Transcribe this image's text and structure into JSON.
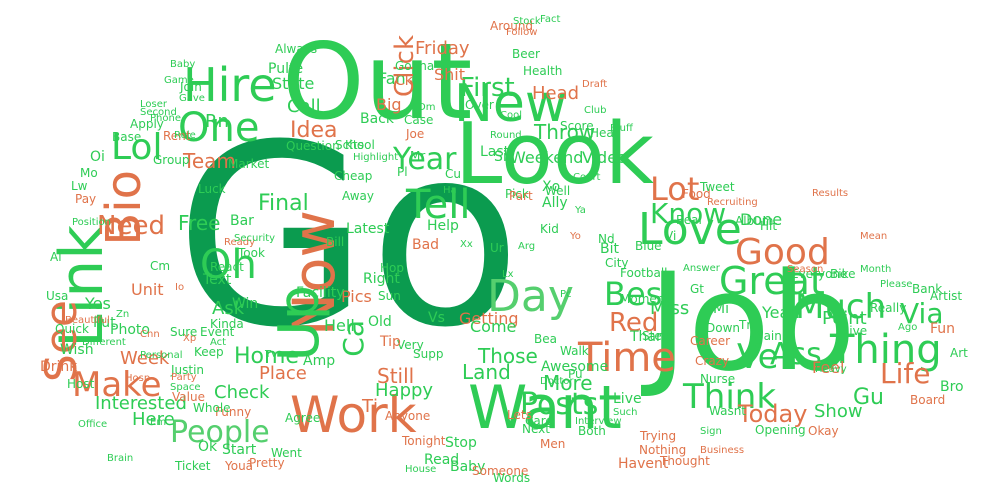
{
  "colors": {
    "dark_green": "#0b9b4f",
    "green": "#2ecc55",
    "light_green": "#55cf6e",
    "orange": "#e0734a",
    "background": "#ffffff"
  },
  "words": [
    {
      "text": "Go",
      "color": "dark_green"
    },
    {
      "text": "Job",
      "color": "green"
    },
    {
      "text": "Out",
      "color": "green"
    },
    {
      "text": "Look",
      "color": "green"
    },
    {
      "text": "Link",
      "color": "green"
    },
    {
      "text": "Want",
      "color": "green"
    },
    {
      "text": "Now",
      "color": "orange"
    },
    {
      "text": "Work",
      "color": "orange"
    },
    {
      "text": "People",
      "color": "light_green"
    },
    {
      "text": "Time",
      "color": "orange"
    },
    {
      "text": "Make",
      "color": "orange"
    },
    {
      "text": "See",
      "color": "orange"
    },
    {
      "text": "Hire",
      "color": "green"
    },
    {
      "text": "New",
      "color": "green"
    },
    {
      "text": "Bio",
      "color": "orange"
    },
    {
      "text": "One",
      "color": "green"
    },
    {
      "text": "Love",
      "color": "green"
    },
    {
      "text": "Tell",
      "color": "green"
    },
    {
      "text": "Think",
      "color": "green"
    },
    {
      "text": "Great",
      "color": "green"
    },
    {
      "text": "Thing",
      "color": "green"
    },
    {
      "text": "Good",
      "color": "orange"
    },
    {
      "text": "Much",
      "color": "green"
    },
    {
      "text": "Best",
      "color": "green"
    },
    {
      "text": "Day",
      "color": "light_green"
    },
    {
      "text": "Up",
      "color": "green"
    },
    {
      "text": "Oh",
      "color": "green"
    },
    {
      "text": "Year",
      "color": "green"
    },
    {
      "text": "Know",
      "color": "green"
    },
    {
      "text": "Lot",
      "color": "orange"
    },
    {
      "text": "Lol",
      "color": "green"
    },
    {
      "text": "Posts",
      "color": "green"
    },
    {
      "text": "Red",
      "color": "orange"
    },
    {
      "text": "Ve",
      "color": "green"
    },
    {
      "text": "Ass",
      "color": "green"
    },
    {
      "text": "Life",
      "color": "orange"
    },
    {
      "text": "Via",
      "color": "green"
    },
    {
      "text": "Need",
      "color": "orange"
    },
    {
      "text": "Click",
      "color": "orange"
    },
    {
      "text": "Today",
      "color": "orange"
    },
    {
      "text": "Ca",
      "color": "green"
    },
    {
      "text": "Interested",
      "color": "green"
    },
    {
      "text": "Rn",
      "color": "green"
    },
    {
      "text": "Still",
      "color": "orange"
    },
    {
      "text": "Happy",
      "color": "green"
    },
    {
      "text": "Land",
      "color": "green"
    },
    {
      "text": "Show",
      "color": "green"
    },
    {
      "text": "Here",
      "color": "green"
    },
    {
      "text": "Week",
      "color": "orange"
    },
    {
      "text": "Final",
      "color": "green"
    },
    {
      "text": "Home",
      "color": "green"
    },
    {
      "text": "Ask",
      "color": "green"
    },
    {
      "text": "Gu",
      "color": "green"
    },
    {
      "text": "More",
      "color": "green"
    },
    {
      "text": "First",
      "color": "green"
    },
    {
      "text": "Latest",
      "color": "green"
    },
    {
      "text": "Weekend",
      "color": "green"
    },
    {
      "text": "Those",
      "color": "green"
    },
    {
      "text": "Head",
      "color": "orange"
    },
    {
      "text": "Throw",
      "color": "green"
    },
    {
      "text": "Team",
      "color": "orange"
    },
    {
      "text": "Free",
      "color": "green"
    },
    {
      "text": "Unit",
      "color": "orange"
    },
    {
      "text": "Photo",
      "color": "green"
    },
    {
      "text": "Point",
      "color": "green"
    },
    {
      "text": "Feel",
      "color": "orange"
    },
    {
      "text": "Place",
      "color": "orange"
    },
    {
      "text": "Call",
      "color": "green"
    },
    {
      "text": "Idea",
      "color": "orange"
    },
    {
      "text": "State",
      "color": "green"
    },
    {
      "text": "Pulte",
      "color": "green"
    },
    {
      "text": "Always",
      "color": "green"
    },
    {
      "text": "Friday",
      "color": "orange"
    },
    {
      "text": "Shit",
      "color": "orange"
    },
    {
      "text": "Big",
      "color": "orange"
    },
    {
      "text": "Getting",
      "color": "orange"
    },
    {
      "text": "Video",
      "color": "green"
    },
    {
      "text": "Thank",
      "color": "green"
    },
    {
      "text": "Miss",
      "color": "green"
    },
    {
      "text": "Done",
      "color": "green"
    },
    {
      "text": "Album",
      "color": "green"
    },
    {
      "text": "Yeah",
      "color": "green"
    },
    {
      "text": "Live",
      "color": "green"
    },
    {
      "text": "Check",
      "color": "green"
    },
    {
      "text": "Hell",
      "color": "green"
    },
    {
      "text": "Amp",
      "color": "green"
    },
    {
      "text": "Pics",
      "color": "orange"
    },
    {
      "text": "Facility",
      "color": "green"
    },
    {
      "text": "Win",
      "color": "green"
    },
    {
      "text": "Put",
      "color": "green"
    },
    {
      "text": "Yes",
      "color": "green"
    },
    {
      "text": "Wish",
      "color": "green"
    },
    {
      "text": "Drink",
      "color": "orange"
    },
    {
      "text": "Ok",
      "color": "green"
    },
    {
      "text": "Start",
      "color": "green"
    },
    {
      "text": "Went",
      "color": "green"
    },
    {
      "text": "Read",
      "color": "green"
    },
    {
      "text": "Baby",
      "color": "green"
    },
    {
      "text": "Someone",
      "color": "orange"
    },
    {
      "text": "Nothing",
      "color": "orange"
    },
    {
      "text": "Opening",
      "color": "green"
    },
    {
      "text": "Men",
      "color": "orange"
    },
    {
      "text": "Stop",
      "color": "green"
    },
    {
      "text": "Come",
      "color": "green"
    },
    {
      "text": "Bad",
      "color": "orange"
    },
    {
      "text": "Help",
      "color": "green"
    },
    {
      "text": "Text",
      "color": "green"
    },
    {
      "text": "Bit",
      "color": "green"
    },
    {
      "text": "City",
      "color": "green"
    },
    {
      "text": "Bank",
      "color": "green"
    },
    {
      "text": "Fun",
      "color": "orange"
    },
    {
      "text": "Bro",
      "color": "green"
    },
    {
      "text": "Give",
      "color": "green"
    },
    {
      "text": "Down",
      "color": "green"
    },
    {
      "text": "Career",
      "color": "orange"
    },
    {
      "text": "Crazy",
      "color": "orange"
    },
    {
      "text": "Hit",
      "color": "green"
    },
    {
      "text": "Food",
      "color": "orange"
    },
    {
      "text": "Real",
      "color": "green"
    },
    {
      "text": "Fan",
      "color": "green"
    },
    {
      "text": "Back",
      "color": "green"
    },
    {
      "text": "Joe",
      "color": "orange"
    },
    {
      "text": "Xo",
      "color": "green"
    },
    {
      "text": "Ally",
      "color": "green"
    },
    {
      "text": "Score",
      "color": "green"
    },
    {
      "text": "School",
      "color": "green"
    },
    {
      "text": "Question",
      "color": "green"
    },
    {
      "text": "Kts",
      "color": "green"
    },
    {
      "text": "Group",
      "color": "green"
    },
    {
      "text": "Luck",
      "color": "green"
    },
    {
      "text": "Position",
      "color": "green"
    },
    {
      "text": "Lw",
      "color": "green"
    },
    {
      "text": "Mo",
      "color": "green"
    },
    {
      "text": "Oi",
      "color": "green"
    },
    {
      "text": "Pay",
      "color": "orange"
    },
    {
      "text": "Phone",
      "color": "green"
    },
    {
      "text": "Apply",
      "color": "green"
    },
    {
      "text": "Base",
      "color": "green"
    },
    {
      "text": "Loser",
      "color": "green"
    },
    {
      "text": "Game",
      "color": "green"
    },
    {
      "text": "Baby",
      "color": "green"
    },
    {
      "text": "Beer",
      "color": "green"
    },
    {
      "text": "Health",
      "color": "green"
    },
    {
      "text": "Around",
      "color": "orange"
    },
    {
      "text": "Follow",
      "color": "orange"
    },
    {
      "text": "Stock",
      "color": "green"
    },
    {
      "text": "Fact",
      "color": "green"
    },
    {
      "text": "Gonna",
      "color": "green"
    },
    {
      "text": "Ck",
      "color": "orange"
    },
    {
      "text": "Draft",
      "color": "orange"
    },
    {
      "text": "Club",
      "color": "green"
    },
    {
      "text": "Bluff",
      "color": "green"
    },
    {
      "text": "Please",
      "color": "green"
    },
    {
      "text": "Really",
      "color": "green"
    },
    {
      "text": "Mean",
      "color": "orange"
    },
    {
      "text": "Month",
      "color": "green"
    },
    {
      "text": "Artist",
      "color": "green"
    },
    {
      "text": "Kinda",
      "color": "green"
    },
    {
      "text": "Event",
      "color": "green"
    },
    {
      "text": "Sure",
      "color": "green"
    },
    {
      "text": "Quick",
      "color": "green"
    },
    {
      "text": "Justin",
      "color": "green"
    },
    {
      "text": "Party",
      "color": "orange"
    },
    {
      "text": "Space",
      "color": "green"
    },
    {
      "text": "Value",
      "color": "orange"
    },
    {
      "text": "Funny",
      "color": "orange"
    },
    {
      "text": "Agree",
      "color": "green"
    },
    {
      "text": "Anyone",
      "color": "orange"
    },
    {
      "text": "Ticket",
      "color": "green"
    },
    {
      "text": "Pretty",
      "color": "orange"
    },
    {
      "text": "Youâ",
      "color": "orange"
    },
    {
      "text": "House",
      "color": "green"
    },
    {
      "text": "Tonight",
      "color": "orange"
    },
    {
      "text": "Next",
      "color": "green"
    },
    {
      "text": "Care",
      "color": "green"
    },
    {
      "text": "Lets",
      "color": "orange"
    },
    {
      "text": "Words",
      "color": "green"
    },
    {
      "text": "Havent",
      "color": "orange"
    },
    {
      "text": "Thought",
      "color": "orange"
    },
    {
      "text": "Business",
      "color": "orange"
    },
    {
      "text": "Trying",
      "color": "orange"
    },
    {
      "text": "Wasnt",
      "color": "green"
    },
    {
      "text": "Okay",
      "color": "orange"
    },
    {
      "text": "Board",
      "color": "orange"
    },
    {
      "text": "Heavy",
      "color": "green"
    },
    {
      "text": "Nurse",
      "color": "green"
    },
    {
      "text": "Awesome",
      "color": "green"
    },
    {
      "text": "Doctor",
      "color": "green"
    },
    {
      "text": "Walk",
      "color": "green"
    },
    {
      "text": "Step",
      "color": "green"
    },
    {
      "text": "Plain",
      "color": "green"
    },
    {
      "text": "Everyone",
      "color": "green"
    },
    {
      "text": "Bike",
      "color": "green"
    },
    {
      "text": "Football",
      "color": "green"
    },
    {
      "text": "Answer",
      "color": "green"
    },
    {
      "text": "Blue",
      "color": "green"
    },
    {
      "text": "Recruiting",
      "color": "orange"
    },
    {
      "text": "Results",
      "color": "orange"
    },
    {
      "text": "Moment",
      "color": "green"
    },
    {
      "text": "Sit",
      "color": "green"
    },
    {
      "text": "Pick",
      "color": "green"
    },
    {
      "text": "Well",
      "color": "green"
    },
    {
      "text": "Part",
      "color": "orange"
    },
    {
      "text": "Last",
      "color": "green"
    },
    {
      "text": "Tweet",
      "color": "green"
    },
    {
      "text": "Court",
      "color": "green"
    },
    {
      "text": "Round",
      "color": "green"
    },
    {
      "text": "Cool",
      "color": "green"
    },
    {
      "text": "Over",
      "color": "green"
    },
    {
      "text": "Case",
      "color": "green"
    },
    {
      "text": "Hear",
      "color": "green"
    },
    {
      "text": "Market",
      "color": "green"
    },
    {
      "text": "Highlight",
      "color": "green"
    },
    {
      "text": "Ready",
      "color": "orange"
    },
    {
      "text": "React",
      "color": "green"
    },
    {
      "text": "Took",
      "color": "green"
    },
    {
      "text": "Bar",
      "color": "green"
    },
    {
      "text": "Bill",
      "color": "green"
    },
    {
      "text": "Right",
      "color": "green"
    },
    {
      "text": "Away",
      "color": "green"
    },
    {
      "text": "Cheap",
      "color": "green"
    },
    {
      "text": "Security",
      "color": "green"
    },
    {
      "text": "Personal",
      "color": "green"
    },
    {
      "text": "Hosp",
      "color": "orange"
    },
    {
      "text": "Keep",
      "color": "green"
    },
    {
      "text": "Whole",
      "color": "green"
    },
    {
      "text": "Very",
      "color": "green"
    },
    {
      "text": "Old",
      "color": "green"
    },
    {
      "text": "Supp",
      "color": "green"
    },
    {
      "text": "Vs",
      "color": "green"
    },
    {
      "text": "Sun",
      "color": "green"
    },
    {
      "text": "Hop",
      "color": "green"
    },
    {
      "text": "Tj",
      "color": "orange"
    },
    {
      "text": "Office",
      "color": "green"
    },
    {
      "text": "Host",
      "color": "green"
    },
    {
      "text": "Brain",
      "color": "green"
    },
    {
      "text": "Usa",
      "color": "green"
    },
    {
      "text": "Beautiful",
      "color": "orange"
    },
    {
      "text": "Different",
      "color": "green"
    },
    {
      "text": "Join",
      "color": "green"
    },
    {
      "text": "Rent",
      "color": "orange"
    },
    {
      "text": "Gave",
      "color": "green"
    },
    {
      "text": "Second",
      "color": "green"
    },
    {
      "text": "Rule",
      "color": "green"
    },
    {
      "text": "Both",
      "color": "green"
    },
    {
      "text": "Interview",
      "color": "green"
    },
    {
      "text": "Such",
      "color": "green"
    },
    {
      "text": "Sign",
      "color": "green"
    },
    {
      "text": "Season",
      "color": "orange"
    },
    {
      "text": "Cm",
      "color": "green"
    },
    {
      "text": "Cnn",
      "color": "orange"
    },
    {
      "text": "Pu",
      "color": "green"
    },
    {
      "text": "Pc",
      "color": "green"
    },
    {
      "text": "Arg",
      "color": "green"
    },
    {
      "text": "Bea",
      "color": "green"
    },
    {
      "text": "Tip",
      "color": "orange"
    },
    {
      "text": "Kid",
      "color": "green"
    },
    {
      "text": "Mi",
      "color": "green"
    },
    {
      "text": "Gt",
      "color": "green"
    },
    {
      "text": "Tn",
      "color": "green"
    },
    {
      "text": "Nd",
      "color": "green"
    },
    {
      "text": "Vi",
      "color": "green"
    },
    {
      "text": "Cu",
      "color": "green"
    },
    {
      "text": "Al",
      "color": "green"
    },
    {
      "text": "Io",
      "color": "orange"
    },
    {
      "text": "Act",
      "color": "green"
    },
    {
      "text": "Art",
      "color": "green"
    },
    {
      "text": "Ago",
      "color": "green"
    },
    {
      "text": "Mr",
      "color": "green"
    },
    {
      "text": "Pl",
      "color": "green"
    },
    {
      "text": "Ur",
      "color": "green"
    },
    {
      "text": "Lx",
      "color": "green"
    },
    {
      "text": "Zn",
      "color": "green"
    },
    {
      "text": "Em",
      "color": "green"
    },
    {
      "text": "Xp",
      "color": "orange"
    },
    {
      "text": "Tv",
      "color": "green"
    },
    {
      "text": "Xx",
      "color": "green"
    },
    {
      "text": "Ya",
      "color": "green"
    },
    {
      "text": "Yo",
      "color": "orange"
    },
    {
      "text": "Dm",
      "color": "green"
    },
    {
      "text": "Ha",
      "color": "green"
    }
  ]
}
